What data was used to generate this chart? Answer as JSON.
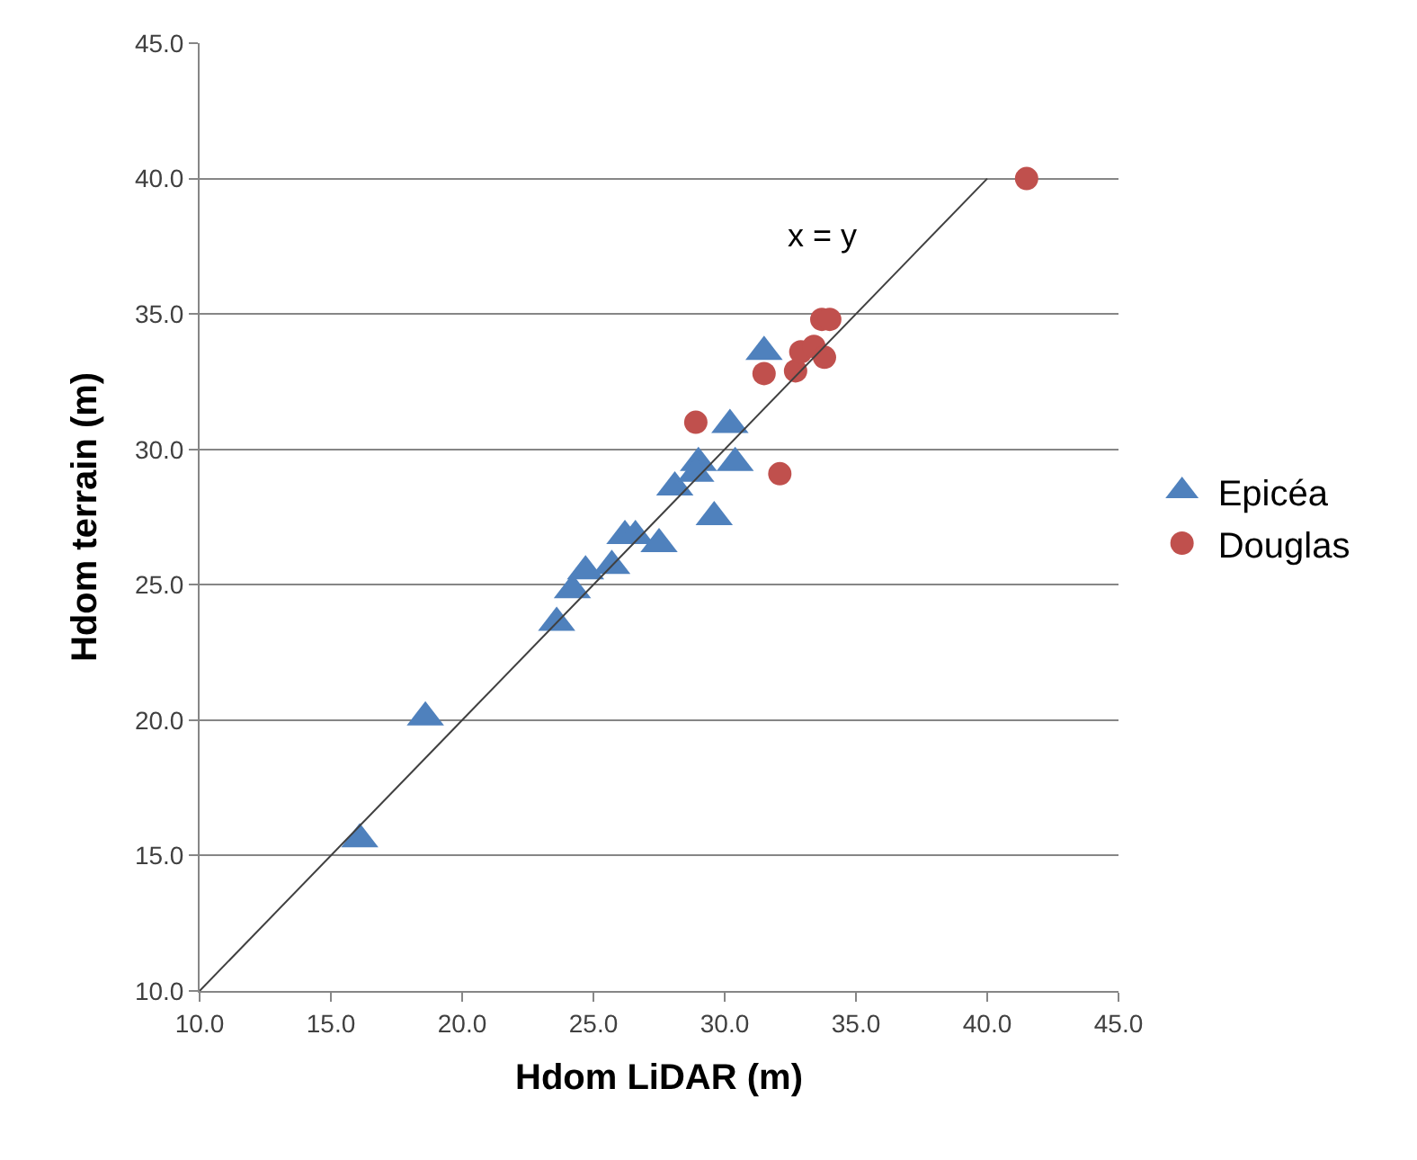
{
  "chart_data": {
    "type": "scatter",
    "xlabel": "Hdom LiDAR (m)",
    "ylabel": "Hdom terrain (m)",
    "xlim": [
      10,
      45
    ],
    "ylim": [
      10,
      45
    ],
    "xticks": [
      {
        "value": 10,
        "label": "10.0"
      },
      {
        "value": 15,
        "label": "15.0"
      },
      {
        "value": 20,
        "label": "20.0"
      },
      {
        "value": 25,
        "label": "25.0"
      },
      {
        "value": 30,
        "label": "30.0"
      },
      {
        "value": 35,
        "label": "35.0"
      },
      {
        "value": 40,
        "label": "40.0"
      },
      {
        "value": 45,
        "label": "45.0"
      }
    ],
    "yticks": [
      {
        "value": 10,
        "label": "10.0"
      },
      {
        "value": 15,
        "label": "15.0"
      },
      {
        "value": 20,
        "label": "20.0"
      },
      {
        "value": 25,
        "label": "25.0"
      },
      {
        "value": 30,
        "label": "30.0"
      },
      {
        "value": 35,
        "label": "35.0"
      },
      {
        "value": 40,
        "label": "40.0"
      },
      {
        "value": 45,
        "label": "45.0"
      }
    ],
    "grid": "y",
    "legend": "right",
    "series": [
      {
        "name": "Epicéa",
        "color": "#4f81bd",
        "marker": "triangle",
        "x": [
          16.1,
          18.6,
          23.6,
          24.2,
          24.7,
          25.7,
          26.2,
          26.6,
          27.5,
          28.1,
          29.0,
          28.9,
          29.6,
          30.2,
          30.4,
          31.5
        ],
        "values": [
          15.6,
          20.1,
          23.6,
          24.8,
          25.5,
          25.7,
          26.8,
          26.8,
          26.5,
          28.6,
          29.5,
          29.1,
          27.5,
          30.9,
          29.5,
          33.6
        ]
      },
      {
        "name": "Douglas",
        "color": "#c0504d",
        "marker": "circle",
        "x": [
          41.5,
          31.5,
          28.9,
          32.1,
          32.7,
          32.9,
          33.4,
          33.7,
          34.0,
          33.8
        ],
        "values": [
          40.0,
          32.8,
          31.0,
          29.1,
          32.9,
          33.6,
          33.8,
          34.8,
          34.8,
          33.4
        ]
      },
      {
        "type": "line",
        "color": "#404040",
        "marker": "none",
        "x": [
          10,
          40
        ],
        "values": [
          10,
          40
        ]
      }
    ],
    "annotations": [
      "x = y"
    ]
  }
}
